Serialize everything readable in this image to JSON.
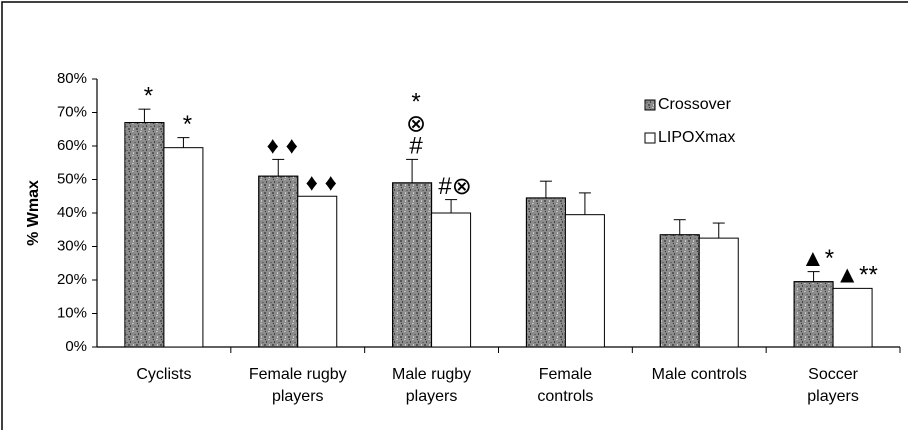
{
  "chart_data": {
    "type": "bar",
    "y_label": "% Wmax",
    "categories": [
      "Cyclists",
      "Female rugby players",
      "Male rugby players",
      "Female controls",
      "Male controls",
      "Soccer players"
    ],
    "series": [
      {
        "name": "Crossover",
        "color": "#8c8c8c",
        "values": [
          67,
          51,
          49,
          44.5,
          33.5,
          19.5
        ],
        "errors": [
          4,
          5,
          7,
          5,
          4.5,
          3
        ],
        "annotations": [
          [
            "*"
          ],
          [
            "♦ ♦"
          ],
          [
            "#",
            "⊗",
            "*"
          ],
          [],
          [],
          [
            "▲*"
          ]
        ]
      },
      {
        "name": "LIPOXmax",
        "color": "#ffffff",
        "values": [
          59.5,
          45,
          40,
          39.5,
          32.5,
          17.5
        ],
        "errors": [
          3,
          null,
          4,
          6.5,
          4.5,
          null
        ],
        "annotations": [
          [
            "*"
          ],
          [
            "♦ ♦"
          ],
          [
            "#⊗"
          ],
          [],
          [],
          [
            "▲**"
          ]
        ]
      }
    ],
    "ylim": [
      0,
      80
    ],
    "yticks": [
      {
        "value": 0,
        "label": "0%"
      },
      {
        "value": 10,
        "label": "10%"
      },
      {
        "value": 20,
        "label": "20%"
      },
      {
        "value": 30,
        "label": "30%"
      },
      {
        "value": 40,
        "label": "40%"
      },
      {
        "value": 50,
        "label": "50%"
      },
      {
        "value": 60,
        "label": "60%"
      },
      {
        "value": 70,
        "label": "70%"
      },
      {
        "value": 80,
        "label": "80%"
      }
    ],
    "legend": "upper right",
    "grid": false
  }
}
